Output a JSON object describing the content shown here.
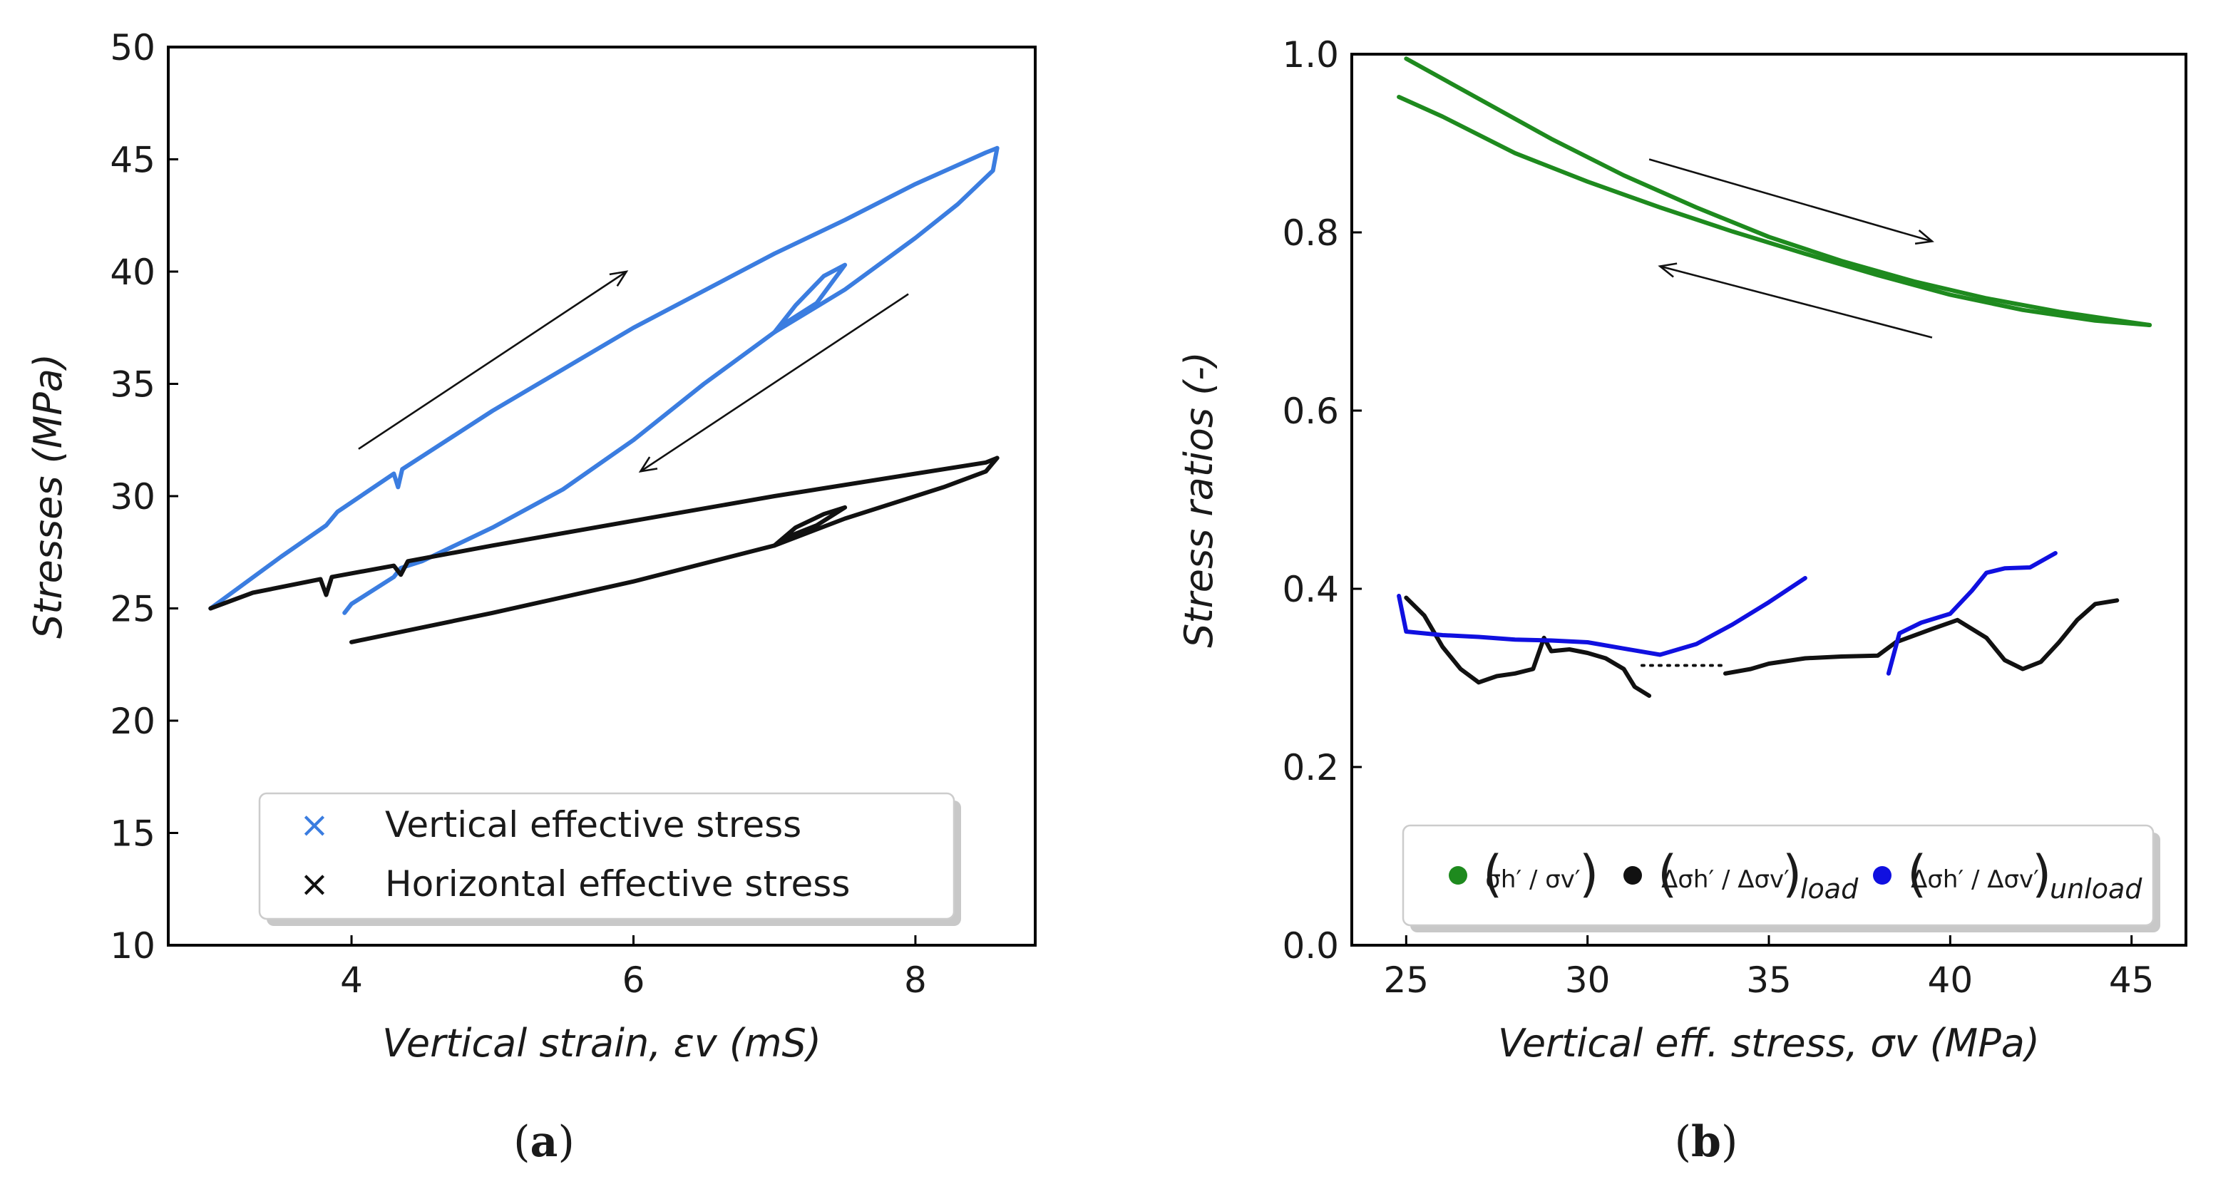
{
  "chart_data": [
    {
      "type": "line",
      "panel_label": "a",
      "xlabel": "Vertical strain, εv (mS)",
      "ylabel": "Stresses (MPa)",
      "xlim": [
        2.7,
        8.85
      ],
      "ylim": [
        10,
        50
      ],
      "xticks": [
        "4",
        "6",
        "8"
      ],
      "xtick_values": [
        4,
        6,
        8
      ],
      "yticks": [
        "10",
        "15",
        "20",
        "25",
        "30",
        "35",
        "40",
        "45",
        "50"
      ],
      "ytick_values": [
        10,
        15,
        20,
        25,
        30,
        35,
        40,
        45,
        50
      ],
      "legend_position": "bottom-right",
      "series": [
        {
          "name": "Vertical effective stress",
          "color": "#3b7de0",
          "marker": "×",
          "segments": [
            {
              "x": [
                3.0,
                3.5,
                3.82,
                3.9,
                4.3,
                4.33,
                4.36,
                5.0,
                6.0,
                7.0,
                7.5,
                8.0,
                8.5,
                8.58
              ],
              "y": [
                25.0,
                27.3,
                28.7,
                29.3,
                31.0,
                30.4,
                31.2,
                33.8,
                37.5,
                40.8,
                42.3,
                43.9,
                45.3,
                45.5
              ]
            },
            {
              "x": [
                8.58,
                8.55,
                8.3,
                8.0,
                7.5,
                7.0,
                6.5,
                6.0,
                5.5,
                5.0,
                4.5,
                4.35,
                4.3,
                4.0,
                3.95
              ],
              "y": [
                45.5,
                44.5,
                43.0,
                41.5,
                39.2,
                37.3,
                35.0,
                32.5,
                30.3,
                28.6,
                27.1,
                26.8,
                26.4,
                25.2,
                24.8
              ]
            },
            {
              "x": [
                7.0,
                7.15,
                7.35,
                7.5,
                7.3,
                7.1,
                7.0
              ],
              "y": [
                37.3,
                38.5,
                39.8,
                40.3,
                38.6,
                37.8,
                37.3
              ]
            }
          ]
        },
        {
          "name": "Horizontal effective stress",
          "color": "#111111",
          "marker": "×",
          "segments": [
            {
              "x": [
                3.0,
                3.3,
                3.78,
                3.82,
                3.86,
                4.3,
                4.35,
                4.4,
                5.0,
                6.0,
                7.0,
                8.0,
                8.5,
                8.58
              ],
              "y": [
                25.0,
                25.7,
                26.3,
                25.6,
                26.4,
                26.9,
                26.5,
                27.1,
                27.8,
                28.9,
                30.0,
                31.0,
                31.5,
                31.7
              ]
            },
            {
              "x": [
                8.58,
                8.5,
                8.2,
                8.0,
                7.5,
                7.0,
                6.0,
                5.0,
                4.0
              ],
              "y": [
                31.7,
                31.1,
                30.4,
                30.0,
                29.0,
                27.8,
                26.2,
                24.8,
                23.5
              ]
            },
            {
              "x": [
                7.0,
                7.15,
                7.35,
                7.5,
                7.3,
                7.1,
                7.0
              ],
              "y": [
                27.8,
                28.6,
                29.2,
                29.5,
                28.7,
                28.2,
                27.8
              ]
            }
          ]
        }
      ]
    },
    {
      "type": "line",
      "panel_label": "b",
      "xlabel": "Vertical eff. stress, σv (MPa)",
      "ylabel": "Stress ratios (-)",
      "xlim": [
        23.5,
        46.5
      ],
      "ylim": [
        0.0,
        1.0
      ],
      "xticks": [
        "25",
        "30",
        "35",
        "40",
        "45"
      ],
      "xtick_values": [
        25,
        30,
        35,
        40,
        45
      ],
      "yticks": [
        "0.0",
        "0.2",
        "0.4",
        "0.6",
        "0.8",
        "1.0"
      ],
      "ytick_values": [
        0.0,
        0.2,
        0.4,
        0.6,
        0.8,
        1.0
      ],
      "legend_position": "bottom",
      "legend_entries": [
        {
          "main": "σh′ / σv′",
          "subscript": ""
        },
        {
          "main": "Δσh′ / Δσv′",
          "subscript": "load"
        },
        {
          "main": "Δσh′ / Δσv′",
          "subscript": "unload"
        }
      ],
      "series": [
        {
          "name": "(σh′ / σv′)",
          "color": "#1e8a1e",
          "segments": [
            {
              "x": [
                25.0,
                27.0,
                29.0,
                31.0,
                33.0,
                35.0,
                37.0,
                39.0,
                41.0,
                43.0,
                45.0,
                45.5
              ],
              "y": [
                0.995,
                0.95,
                0.905,
                0.864,
                0.828,
                0.795,
                0.768,
                0.745,
                0.726,
                0.711,
                0.699,
                0.696
              ]
            },
            {
              "x": [
                45.5,
                44.0,
                42.0,
                40.0,
                38.0,
                36.0,
                34.0,
                32.0,
                30.0,
                28.0,
                26.0,
                24.8
              ],
              "y": [
                0.696,
                0.701,
                0.713,
                0.73,
                0.752,
                0.776,
                0.801,
                0.828,
                0.857,
                0.889,
                0.93,
                0.952
              ]
            }
          ]
        },
        {
          "name": "(Δσh′ / Δσv′)load",
          "color": "#111111",
          "segments": [
            {
              "x": [
                25.0,
                25.5,
                26.0,
                26.5,
                27.0,
                27.5,
                28.0,
                28.5,
                28.8,
                29.0,
                29.5,
                30.0,
                30.5,
                31.0,
                31.3,
                31.7
              ],
              "y": [
                0.39,
                0.37,
                0.335,
                0.31,
                0.295,
                0.302,
                0.305,
                0.31,
                0.345,
                0.33,
                0.332,
                0.328,
                0.322,
                0.31,
                0.29,
                0.28
              ]
            },
            {
              "x": [
                33.8,
                34.5,
                35.0,
                36.0,
                37.0,
                38.0,
                38.5,
                39.5,
                40.2,
                41.0,
                41.5,
                42.0,
                42.5,
                43.0,
                43.5,
                44.0,
                44.6
              ],
              "y": [
                0.305,
                0.31,
                0.316,
                0.322,
                0.324,
                0.325,
                0.34,
                0.355,
                0.365,
                0.345,
                0.32,
                0.31,
                0.318,
                0.34,
                0.365,
                0.383,
                0.387
              ]
            }
          ]
        },
        {
          "name": "(Δσh′ / Δσv′)unload",
          "color": "#1010e0",
          "segments": [
            {
              "x": [
                24.8,
                25.0,
                26.0,
                27.0,
                28.0,
                29.0,
                30.0,
                31.0,
                32.0,
                33.0,
                34.0,
                35.0,
                36.0
              ],
              "y": [
                0.392,
                0.352,
                0.348,
                0.346,
                0.343,
                0.342,
                0.34,
                0.333,
                0.326,
                0.338,
                0.36,
                0.385,
                0.412
              ]
            },
            {
              "x": [
                38.3,
                38.6,
                39.2,
                40.0,
                40.6,
                41.0,
                41.5,
                42.2,
                42.9
              ],
              "y": [
                0.305,
                0.35,
                0.362,
                0.372,
                0.398,
                0.418,
                0.423,
                0.424,
                0.44
              ]
            }
          ]
        }
      ]
    }
  ]
}
